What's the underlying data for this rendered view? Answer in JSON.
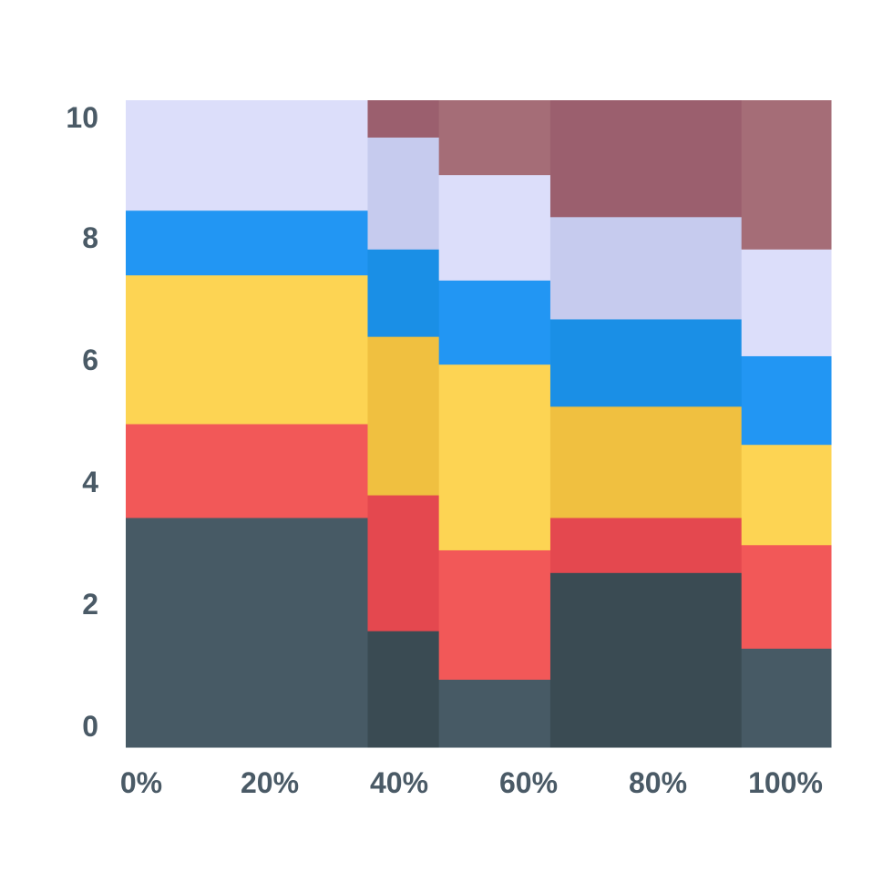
{
  "chart_data": {
    "type": "bar",
    "variant": "marimekko-stacked",
    "title": "",
    "xlabel": "",
    "ylabel": "",
    "ylim": [
      0,
      10
    ],
    "x_ticks": [
      "0%",
      "20%",
      "40%",
      "60%",
      "80%",
      "100%"
    ],
    "y_ticks": [
      "0",
      "2",
      "4",
      "6",
      "8",
      "10"
    ],
    "grid": false,
    "legend": "none",
    "columns": [
      {
        "x_start": 0,
        "x_end": 34.3,
        "segments": [
          {
            "from": 0,
            "to": 3.55,
            "color": "#475a65"
          },
          {
            "from": 3.55,
            "to": 5.0,
            "color": "#f25858"
          },
          {
            "from": 5.0,
            "to": 7.3,
            "color": "#fdd453"
          },
          {
            "from": 7.3,
            "to": 8.3,
            "color": "#2296f3"
          },
          {
            "from": 8.3,
            "to": 10.0,
            "color": "#dcdefa"
          }
        ]
      },
      {
        "x_start": 34.3,
        "x_end": 44.4,
        "segments": [
          {
            "from": 0,
            "to": 1.8,
            "color": "#3a4b53"
          },
          {
            "from": 1.8,
            "to": 3.9,
            "color": "#e4484f"
          },
          {
            "from": 3.9,
            "to": 6.35,
            "color": "#f0c040"
          },
          {
            "from": 6.35,
            "to": 7.7,
            "color": "#1a8fe6"
          },
          {
            "from": 7.7,
            "to": 9.43,
            "color": "#c6cbee"
          },
          {
            "from": 9.43,
            "to": 10.0,
            "color": "#9b5f6e"
          }
        ]
      },
      {
        "x_start": 44.4,
        "x_end": 60.2,
        "segments": [
          {
            "from": 0,
            "to": 1.05,
            "color": "#475a65"
          },
          {
            "from": 1.05,
            "to": 3.05,
            "color": "#f25858"
          },
          {
            "from": 3.05,
            "to": 5.92,
            "color": "#fdd453"
          },
          {
            "from": 5.92,
            "to": 7.22,
            "color": "#2296f3"
          },
          {
            "from": 7.22,
            "to": 8.85,
            "color": "#dcdefa"
          },
          {
            "from": 8.85,
            "to": 10.0,
            "color": "#a56d77"
          }
        ]
      },
      {
        "x_start": 60.2,
        "x_end": 87.3,
        "segments": [
          {
            "from": 0,
            "to": 2.7,
            "color": "#3a4b53"
          },
          {
            "from": 2.7,
            "to": 3.55,
            "color": "#e4484f"
          },
          {
            "from": 3.55,
            "to": 5.27,
            "color": "#f0c040"
          },
          {
            "from": 5.27,
            "to": 6.62,
            "color": "#1a8fe6"
          },
          {
            "from": 6.62,
            "to": 8.2,
            "color": "#c6cbee"
          },
          {
            "from": 8.2,
            "to": 10.0,
            "color": "#9b5f6e"
          }
        ]
      },
      {
        "x_start": 87.3,
        "x_end": 100,
        "segments": [
          {
            "from": 0,
            "to": 1.53,
            "color": "#475a65"
          },
          {
            "from": 1.53,
            "to": 3.13,
            "color": "#f25858"
          },
          {
            "from": 3.13,
            "to": 4.68,
            "color": "#fdd453"
          },
          {
            "from": 4.68,
            "to": 6.05,
            "color": "#2296f3"
          },
          {
            "from": 6.05,
            "to": 7.7,
            "color": "#dcdefa"
          },
          {
            "from": 7.7,
            "to": 10.0,
            "color": "#a56d77"
          }
        ]
      }
    ]
  }
}
